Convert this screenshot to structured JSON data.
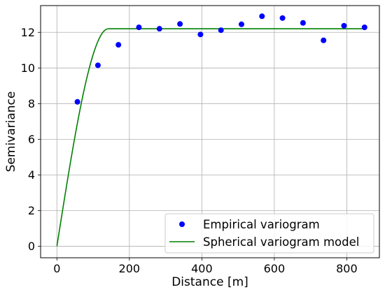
{
  "chart_data": {
    "type": "scatter",
    "xlabel": "Distance [m]",
    "ylabel": "Semivariance",
    "xlim": [
      -45,
      890
    ],
    "ylim": [
      -0.65,
      13.5
    ],
    "xticks": [
      0,
      200,
      400,
      600,
      800
    ],
    "yticks": [
      0,
      2,
      4,
      6,
      8,
      10,
      12
    ],
    "grid": true,
    "legend_position": "bottom-right",
    "series": [
      {
        "name": "Empirical variogram",
        "kind": "points",
        "color": "#0000ff",
        "x": [
          56.6,
          113.2,
          169.8,
          226.4,
          283,
          339.6,
          396.2,
          452.8,
          509.4,
          566,
          622.6,
          679.2,
          735.8,
          792.4,
          849
        ],
        "y": [
          8.1,
          10.15,
          11.3,
          12.28,
          12.2,
          12.47,
          11.88,
          12.12,
          12.45,
          12.9,
          12.8,
          12.53,
          11.55,
          12.37,
          12.28
        ]
      },
      {
        "name": "Spherical variogram model",
        "kind": "line",
        "color": "#008000",
        "model": {
          "nugget": 0,
          "sill": 12.2,
          "range": 142
        },
        "x_range": [
          0,
          849
        ]
      }
    ]
  }
}
